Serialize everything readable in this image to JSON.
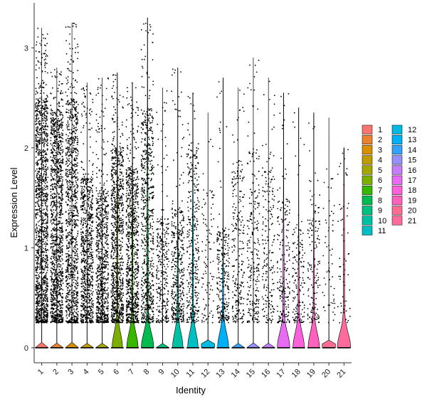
{
  "chart_data": {
    "type": "violin",
    "xlabel": "Identity",
    "ylabel": "Expression Level",
    "ylim": [
      -0.15,
      3.45
    ],
    "yticks": [
      0,
      1,
      2,
      3
    ],
    "jitter_points": true,
    "legend_position": "right",
    "legend_columns": 2,
    "grid": false,
    "categories": [
      "1",
      "2",
      "3",
      "4",
      "5",
      "6",
      "7",
      "8",
      "9",
      "10",
      "11",
      "12",
      "13",
      "14",
      "15",
      "16",
      "17",
      "18",
      "19",
      "20",
      "21"
    ],
    "colors": [
      "#F8766D",
      "#EA8331",
      "#D89000",
      "#C09B00",
      "#A3A500",
      "#7CAE00",
      "#39B600",
      "#00BB4E",
      "#00BF7D",
      "#00C1A3",
      "#00BFC4",
      "#00BAE0",
      "#00B0F6",
      "#35A2FF",
      "#9590FF",
      "#C77CFF",
      "#E76BF3",
      "#FA62DB",
      "#FF62BC",
      "#FF6C91",
      "#FF6B9A"
    ],
    "series": [
      {
        "name": "1",
        "n_points": 1400,
        "upper": 2.5,
        "max": 3.2,
        "violin_peak_width": 0.02
      },
      {
        "name": "2",
        "n_points": 1200,
        "upper": 2.4,
        "max": 2.8,
        "violin_peak_width": 0.02
      },
      {
        "name": "3",
        "n_points": 1000,
        "upper": 2.5,
        "max": 3.25,
        "violin_peak_width": 0.02
      },
      {
        "name": "4",
        "n_points": 800,
        "upper": 1.7,
        "max": 2.65,
        "violin_peak_width": 0.02
      },
      {
        "name": "5",
        "n_points": 750,
        "upper": 1.6,
        "max": 2.7,
        "violin_peak_width": 0.02
      },
      {
        "name": "6",
        "n_points": 900,
        "upper": 2.0,
        "max": 2.75,
        "violin_peak_width": 0.35
      },
      {
        "name": "7",
        "n_points": 850,
        "upper": 1.8,
        "max": 2.65,
        "violin_peak_width": 0.38
      },
      {
        "name": "8",
        "n_points": 700,
        "upper": 2.4,
        "max": 3.3,
        "violin_peak_width": 0.42
      },
      {
        "name": "9",
        "n_points": 300,
        "upper": 1.3,
        "max": 2.6,
        "violin_peak_width": 0.02
      },
      {
        "name": "10",
        "n_points": 400,
        "upper": 1.4,
        "max": 2.8,
        "violin_peak_width": 0.35
      },
      {
        "name": "11",
        "n_points": 350,
        "upper": 2.0,
        "max": 2.55,
        "violin_peak_width": 0.35
      },
      {
        "name": "12",
        "n_points": 100,
        "upper": 1.6,
        "max": 2.35,
        "violin_peak_width": 0.02
      },
      {
        "name": "13",
        "n_points": 250,
        "upper": 1.2,
        "max": 2.7,
        "violin_peak_width": 0.37
      },
      {
        "name": "14",
        "n_points": 250,
        "upper": 1.9,
        "max": 2.6,
        "violin_peak_width": 0.02
      },
      {
        "name": "15",
        "n_points": 250,
        "upper": 2.0,
        "max": 2.9,
        "violin_peak_width": 0.02
      },
      {
        "name": "16",
        "n_points": 200,
        "upper": 1.8,
        "max": 2.7,
        "violin_peak_width": 0.02
      },
      {
        "name": "17",
        "n_points": 200,
        "upper": 1.5,
        "max": 2.55,
        "violin_peak_width": 0.42
      },
      {
        "name": "18",
        "n_points": 150,
        "upper": 1.2,
        "max": 2.4,
        "violin_peak_width": 0.38
      },
      {
        "name": "19",
        "n_points": 150,
        "upper": 1.4,
        "max": 2.35,
        "violin_peak_width": 0.38
      },
      {
        "name": "20",
        "n_points": 60,
        "upper": 1.8,
        "max": 2.3,
        "violin_peak_width": 0.02
      },
      {
        "name": "21",
        "n_points": 60,
        "upper": 2.0,
        "max": 2.0,
        "violin_peak_width": 0.45
      }
    ]
  }
}
